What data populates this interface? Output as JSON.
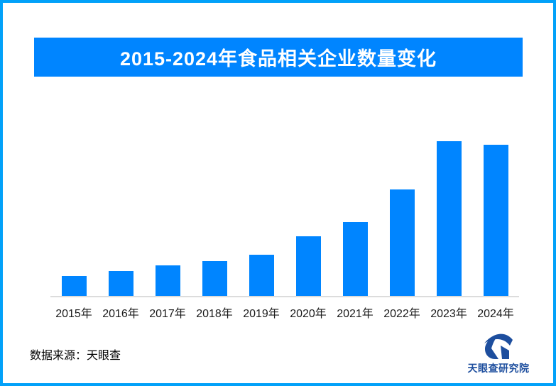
{
  "page": {
    "background_color": "#FFFFFF",
    "border_color": "#02A1F9"
  },
  "header": {
    "title": "2015-2024年食品相关企业数量变化",
    "banner_color": "#0085FF",
    "title_color": "#FFFFFF"
  },
  "chart_data": {
    "type": "bar",
    "title": "2015-2024年食品相关企业数量变化",
    "categories": [
      "2015年",
      "2016年",
      "2017年",
      "2018年",
      "2019年",
      "2020年",
      "2021年",
      "2022年",
      "2023年",
      "2024年"
    ],
    "values": [
      12.8,
      16.1,
      19.7,
      22.5,
      26.6,
      38.5,
      47.7,
      68.8,
      100,
      97.7
    ],
    "values_estimated": true,
    "xlabel": "",
    "ylabel": "",
    "ylim": [
      0,
      110
    ],
    "grid": false,
    "legend": false,
    "bar_color": "#0085FF",
    "axis_line_color": "#DCDCDC",
    "tick_label_color": "#1A1A1A"
  },
  "footer": {
    "source_label": "数据来源：天眼查"
  },
  "logo": {
    "name": "天眼查研究院",
    "color": "#1D4E9E"
  }
}
